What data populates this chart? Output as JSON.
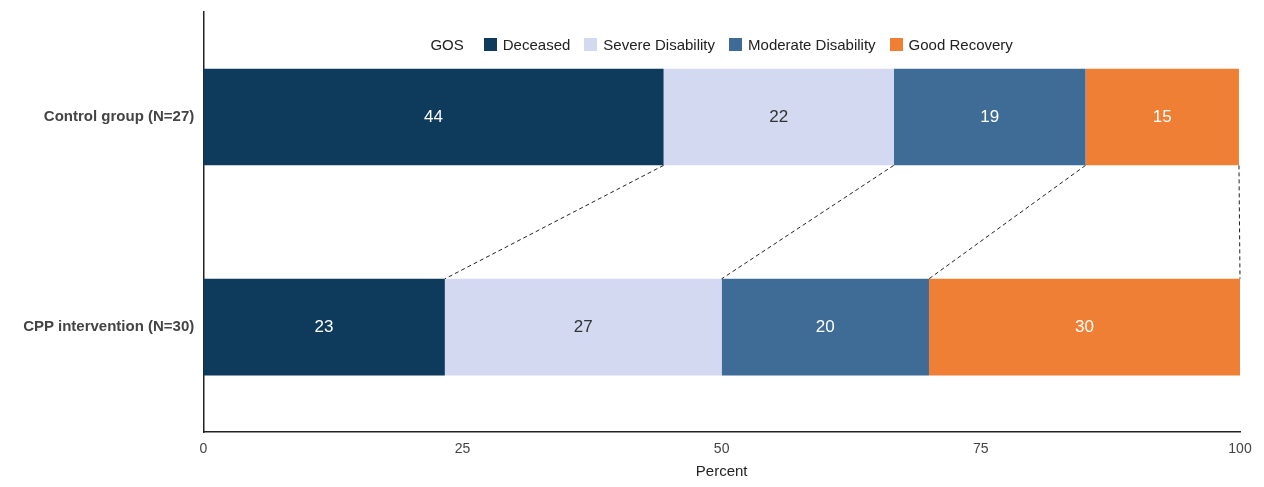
{
  "chart_data": {
    "type": "bar",
    "orientation": "horizontal",
    "stacked": true,
    "xlabel": "Percent",
    "legend_title": "GOS",
    "legend": "top",
    "categories": [
      "Control group (N=27)",
      "CPP intervention (N=30)"
    ],
    "xlim": [
      0,
      100
    ],
    "xticks": [
      0,
      25,
      50,
      75,
      100
    ],
    "grid": false,
    "series": [
      {
        "name": "Deceased",
        "color": "#0e3a5c",
        "values": [
          44.4,
          23.3
        ],
        "value_labels": [
          "44",
          "23"
        ]
      },
      {
        "name": "Severe Disability",
        "color": "#d2d9f0",
        "values": [
          22.2,
          26.7
        ],
        "value_labels": [
          "22",
          "27"
        ]
      },
      {
        "name": "Moderate Disability",
        "color": "#3f6c96",
        "values": [
          18.5,
          20
        ],
        "value_labels": [
          "19",
          "20"
        ]
      },
      {
        "name": "Good Recovery",
        "color": "#ee7f34",
        "values": [
          14.8,
          30
        ],
        "value_labels": [
          "15",
          "30"
        ]
      }
    ]
  }
}
